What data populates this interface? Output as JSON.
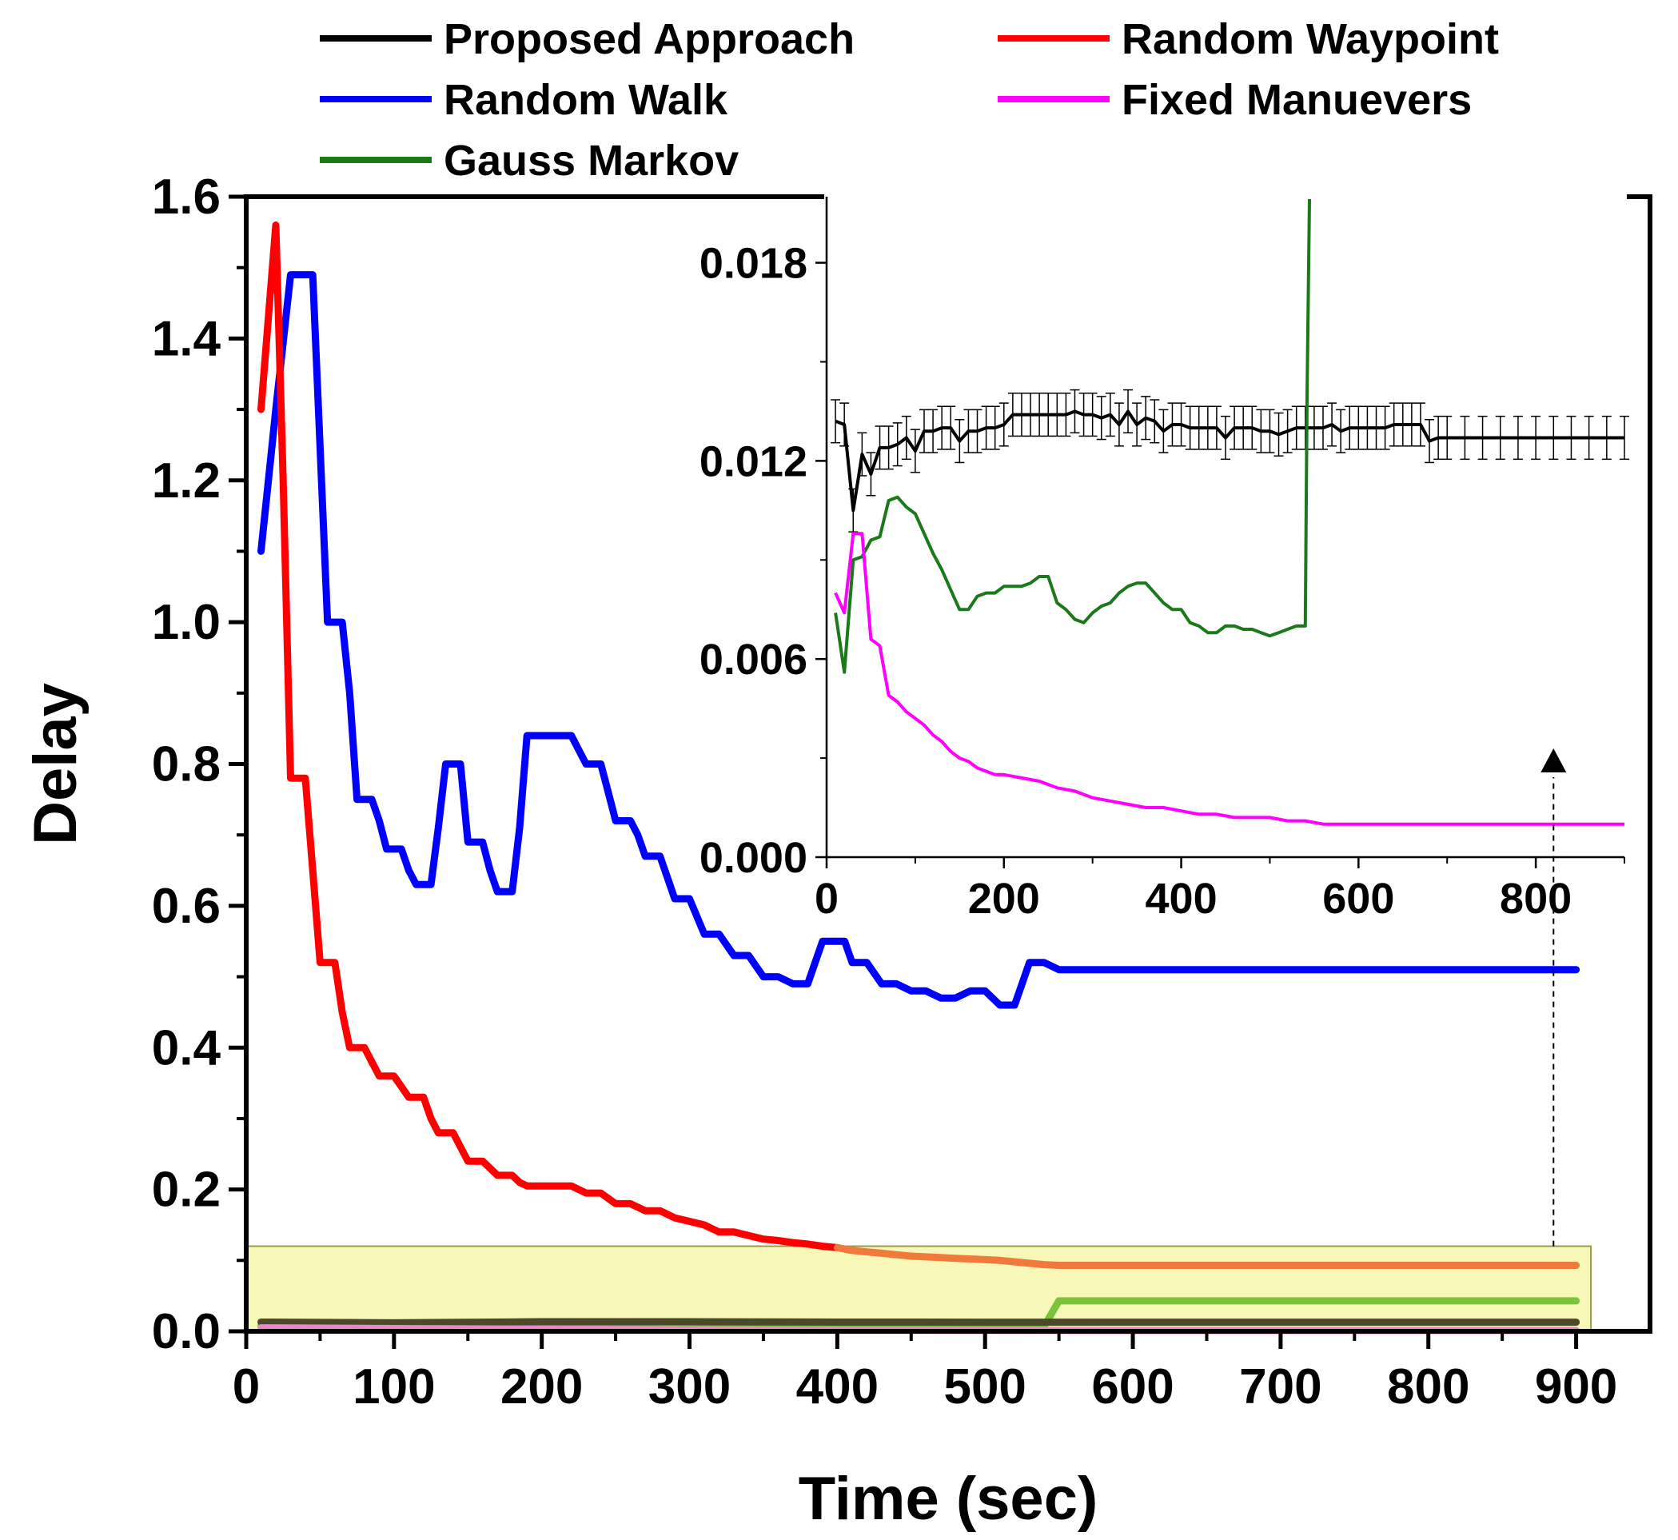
{
  "chart_data": {
    "type": "line",
    "xlabel": "Time (sec)",
    "ylabel": "Delay",
    "xlim": [
      0,
      950
    ],
    "ylim": [
      0,
      1.6
    ],
    "xticks": [
      "0",
      "100",
      "200",
      "300",
      "400",
      "500",
      "600",
      "700",
      "800",
      "900"
    ],
    "yticks": [
      "0.0",
      "0.2",
      "0.4",
      "0.6",
      "0.8",
      "1.0",
      "1.2",
      "1.4",
      "1.6"
    ],
    "legend": [
      {
        "label": "Proposed Approach",
        "color": "#000000"
      },
      {
        "label": "Random Waypoint",
        "color": "#ff0000"
      },
      {
        "label": "Random Walk",
        "color": "#0000ff"
      },
      {
        "label": "Fixed Manuevers",
        "color": "#ff00ff"
      },
      {
        "label": "Gauss Markov",
        "color": "#1a7a1a"
      }
    ],
    "series": [
      {
        "name": "Random Walk",
        "color": "#0000ff",
        "x": [
          10,
          20,
          30,
          35,
          40,
          45,
          55,
          60,
          65,
          70,
          75,
          80,
          85,
          90,
          95,
          100,
          105,
          110,
          115,
          120,
          125,
          130,
          135,
          140,
          145,
          150,
          155,
          160,
          165,
          170,
          175,
          180,
          185,
          190,
          195,
          200,
          210,
          215,
          220,
          225,
          230,
          235,
          240,
          245,
          250,
          255,
          260,
          265,
          270,
          275,
          280,
          285,
          290,
          295,
          300,
          310,
          315,
          320,
          330,
          340,
          350,
          360,
          370,
          380,
          390,
          400,
          405,
          410,
          415,
          420,
          430,
          440,
          450,
          460,
          470,
          480,
          490,
          500,
          510,
          520,
          530,
          540,
          550,
          900
        ],
        "y": [
          1.1,
          1.3,
          1.49,
          1.49,
          1.49,
          1.49,
          1.0,
          1.0,
          1.0,
          0.9,
          0.75,
          0.75,
          0.75,
          0.72,
          0.68,
          0.68,
          0.68,
          0.65,
          0.63,
          0.63,
          0.63,
          0.71,
          0.8,
          0.8,
          0.8,
          0.69,
          0.69,
          0.69,
          0.65,
          0.62,
          0.62,
          0.62,
          0.71,
          0.84,
          0.84,
          0.84,
          0.84,
          0.84,
          0.84,
          0.82,
          0.8,
          0.8,
          0.8,
          0.76,
          0.72,
          0.72,
          0.72,
          0.7,
          0.67,
          0.67,
          0.67,
          0.64,
          0.61,
          0.61,
          0.61,
          0.56,
          0.56,
          0.56,
          0.53,
          0.53,
          0.5,
          0.5,
          0.49,
          0.49,
          0.55,
          0.55,
          0.55,
          0.52,
          0.52,
          0.52,
          0.49,
          0.49,
          0.48,
          0.48,
          0.47,
          0.47,
          0.48,
          0.48,
          0.46,
          0.46,
          0.52,
          0.52,
          0.51,
          0.51
        ]
      },
      {
        "name": "Random Waypoint",
        "color": "#ff0000",
        "x": [
          10,
          20,
          25,
          30,
          35,
          40,
          45,
          50,
          55,
          60,
          65,
          70,
          75,
          80,
          85,
          90,
          95,
          100,
          105,
          110,
          115,
          120,
          125,
          130,
          135,
          140,
          145,
          150,
          155,
          160,
          165,
          170,
          175,
          180,
          185,
          190,
          200,
          210,
          220,
          230,
          240,
          250,
          260,
          270,
          280,
          290,
          300,
          310,
          320,
          330,
          340,
          350,
          360,
          370,
          380,
          390,
          400
        ],
        "y": [
          1.3,
          1.56,
          1.2,
          0.78,
          0.78,
          0.78,
          0.65,
          0.52,
          0.52,
          0.52,
          0.45,
          0.4,
          0.4,
          0.4,
          0.38,
          0.36,
          0.36,
          0.36,
          0.345,
          0.33,
          0.33,
          0.33,
          0.3,
          0.28,
          0.28,
          0.28,
          0.26,
          0.24,
          0.24,
          0.24,
          0.23,
          0.22,
          0.22,
          0.22,
          0.21,
          0.205,
          0.205,
          0.205,
          0.205,
          0.195,
          0.195,
          0.18,
          0.18,
          0.17,
          0.17,
          0.16,
          0.155,
          0.15,
          0.14,
          0.14,
          0.135,
          0.13,
          0.128,
          0.125,
          0.123,
          0.12,
          0.118
        ]
      },
      {
        "name": "Random Waypoint (highlighted)",
        "color": "#f07a3c",
        "x": [
          400,
          410,
          420,
          430,
          440,
          450,
          460,
          470,
          480,
          490,
          500,
          510,
          520,
          530,
          540,
          550,
          900
        ],
        "y": [
          0.118,
          0.114,
          0.112,
          0.11,
          0.108,
          0.106,
          0.105,
          0.104,
          0.103,
          0.102,
          0.101,
          0.1,
          0.098,
          0.096,
          0.094,
          0.093,
          0.093
        ]
      },
      {
        "name": "Gauss Markov (highlighted)",
        "color": "#7cc23c",
        "x": [
          10,
          100,
          200,
          300,
          400,
          500,
          540,
          550,
          900
        ],
        "y": [
          0.008,
          0.007,
          0.007,
          0.007,
          0.007,
          0.007,
          0.007,
          0.043,
          0.043
        ]
      },
      {
        "name": "Proposed Approach (highlighted)",
        "color": "#4a4a2a",
        "x": [
          10,
          100,
          200,
          300,
          400,
          500,
          600,
          700,
          800,
          900
        ],
        "y": [
          0.013,
          0.012,
          0.0135,
          0.0135,
          0.013,
          0.0128,
          0.0128,
          0.0128,
          0.0128,
          0.0128
        ]
      },
      {
        "name": "Fixed Manuevers (highlighted)",
        "color": "#e888c8",
        "x": [
          10,
          100,
          200,
          300,
          400,
          500,
          600,
          900
        ],
        "y": [
          0.005,
          0.004,
          0.003,
          0.002,
          0.0015,
          0.0012,
          0.0011,
          0.0011
        ]
      }
    ],
    "highlight_region": {
      "x": [
        0,
        910
      ],
      "y": [
        0,
        0.12
      ]
    },
    "inset": {
      "xlim": [
        0,
        900
      ],
      "ylim": [
        0,
        0.02
      ],
      "xticks": [
        "0",
        "200",
        "400",
        "600",
        "800"
      ],
      "yticks": [
        "0.000",
        "0.006",
        "0.012",
        "0.018"
      ],
      "series": [
        {
          "name": "Proposed Approach",
          "color": "#000000",
          "error_bars": true,
          "error": 0.00065,
          "x": [
            10,
            20,
            30,
            40,
            50,
            60,
            70,
            80,
            90,
            100,
            110,
            120,
            130,
            140,
            150,
            160,
            170,
            180,
            190,
            200,
            210,
            220,
            230,
            240,
            250,
            260,
            270,
            280,
            290,
            300,
            310,
            320,
            330,
            340,
            350,
            360,
            370,
            380,
            390,
            400,
            410,
            420,
            430,
            440,
            450,
            460,
            470,
            480,
            490,
            500,
            510,
            520,
            530,
            540,
            550,
            560,
            570,
            580,
            590,
            600,
            610,
            620,
            630,
            640,
            650,
            660,
            670,
            680,
            690,
            700,
            720,
            740,
            760,
            780,
            800,
            820,
            840,
            860,
            880,
            900
          ],
          "y": [
            0.0132,
            0.0131,
            0.0105,
            0.0122,
            0.0116,
            0.0124,
            0.0124,
            0.0125,
            0.0127,
            0.0123,
            0.0129,
            0.0129,
            0.013,
            0.013,
            0.0126,
            0.0129,
            0.0129,
            0.013,
            0.013,
            0.0131,
            0.0134,
            0.0134,
            0.0134,
            0.0134,
            0.0134,
            0.0134,
            0.0134,
            0.0135,
            0.0134,
            0.0134,
            0.0133,
            0.0134,
            0.0131,
            0.0135,
            0.0131,
            0.0133,
            0.0132,
            0.0129,
            0.0131,
            0.0131,
            0.013,
            0.013,
            0.013,
            0.013,
            0.0127,
            0.013,
            0.013,
            0.013,
            0.0129,
            0.0129,
            0.0128,
            0.0129,
            0.013,
            0.013,
            0.013,
            0.013,
            0.0131,
            0.0129,
            0.013,
            0.013,
            0.013,
            0.013,
            0.013,
            0.0131,
            0.0131,
            0.0131,
            0.0131,
            0.0126,
            0.0127,
            0.0127,
            0.0127,
            0.0127,
            0.0127,
            0.0127,
            0.0127,
            0.0127,
            0.0127,
            0.0127,
            0.0127,
            0.0127
          ]
        },
        {
          "name": "Gauss Markov",
          "color": "#1a7a1a",
          "error_bars": false,
          "x": [
            10,
            20,
            30,
            40,
            50,
            60,
            70,
            80,
            90,
            100,
            110,
            120,
            130,
            140,
            150,
            160,
            170,
            180,
            190,
            200,
            210,
            220,
            230,
            240,
            250,
            260,
            270,
            280,
            290,
            300,
            310,
            320,
            330,
            340,
            350,
            360,
            370,
            380,
            390,
            400,
            410,
            420,
            430,
            440,
            450,
            460,
            470,
            480,
            490,
            500,
            510,
            520,
            530,
            540,
            542,
            545
          ],
          "y": [
            0.0074,
            0.0056,
            0.009,
            0.0091,
            0.0096,
            0.0097,
            0.0108,
            0.0109,
            0.0106,
            0.0104,
            0.0098,
            0.0092,
            0.0087,
            0.0081,
            0.0075,
            0.0075,
            0.0079,
            0.008,
            0.008,
            0.0082,
            0.0082,
            0.0082,
            0.0083,
            0.0085,
            0.0085,
            0.0077,
            0.0075,
            0.0072,
            0.0071,
            0.0074,
            0.0076,
            0.0077,
            0.008,
            0.0082,
            0.0083,
            0.0083,
            0.008,
            0.0077,
            0.0075,
            0.0075,
            0.0071,
            0.007,
            0.0068,
            0.0068,
            0.007,
            0.007,
            0.0069,
            0.0069,
            0.0068,
            0.0067,
            0.0068,
            0.0069,
            0.007,
            0.007,
            0.014,
            0.0205
          ]
        },
        {
          "name": "Fixed Manuevers",
          "color": "#ff00ff",
          "error_bars": false,
          "x": [
            10,
            20,
            30,
            40,
            50,
            60,
            70,
            80,
            90,
            100,
            110,
            120,
            130,
            140,
            150,
            160,
            170,
            180,
            190,
            200,
            220,
            240,
            260,
            280,
            300,
            320,
            340,
            360,
            380,
            400,
            420,
            440,
            460,
            480,
            500,
            520,
            540,
            560,
            600,
            700,
            800,
            900
          ],
          "y": [
            0.008,
            0.0074,
            0.0098,
            0.0098,
            0.0066,
            0.0064,
            0.0049,
            0.0047,
            0.0044,
            0.0042,
            0.004,
            0.0037,
            0.0035,
            0.0032,
            0.003,
            0.0029,
            0.0027,
            0.0026,
            0.0025,
            0.0025,
            0.0024,
            0.0023,
            0.0021,
            0.002,
            0.0018,
            0.0017,
            0.0016,
            0.0015,
            0.0015,
            0.0014,
            0.0013,
            0.0013,
            0.0012,
            0.0012,
            0.0012,
            0.0011,
            0.0011,
            0.001,
            0.001,
            0.001,
            0.001,
            0.001
          ]
        }
      ],
      "marker_arrow": {
        "x": 820
      }
    }
  }
}
